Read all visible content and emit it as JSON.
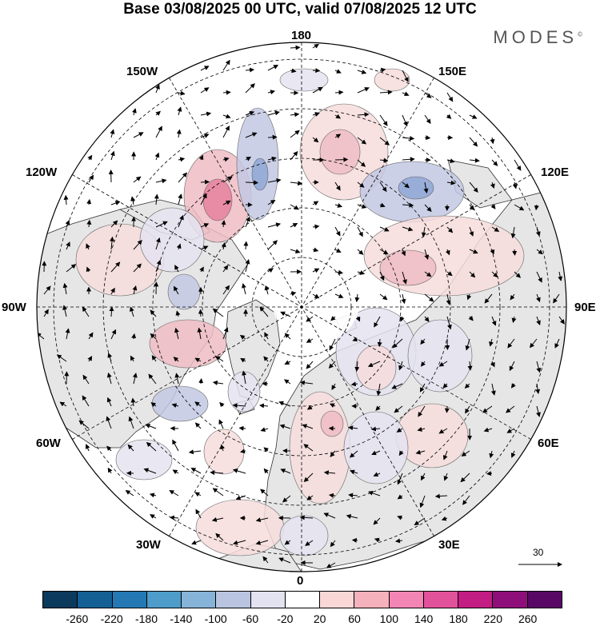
{
  "title": "Base 03/08/2025 00 UTC, valid 07/08/2025 12 UTC",
  "brand": "MODES",
  "brand_mark": "©",
  "longitude_labels": {
    "top": "180",
    "bottom": "0",
    "left": "90W",
    "right": "90E",
    "upper_left_1": "150W",
    "upper_left_2": "120W",
    "upper_right_1": "150E",
    "upper_right_2": "120E",
    "lower_left_1": "60W",
    "lower_left_2": "30W",
    "lower_right_1": "60E",
    "lower_right_2": "30E"
  },
  "vector_scale": {
    "value": "30"
  },
  "colorbar": {
    "colors": [
      "#0b3a5c",
      "#145f93",
      "#2479b5",
      "#4d9cc9",
      "#86b4d8",
      "#b9c5e0",
      "#e2e2f0",
      "#ffffff",
      "#fad7d7",
      "#f6b2bc",
      "#f285b3",
      "#e2529b",
      "#c11d82",
      "#8f0f7a",
      "#5a0866"
    ],
    "tick_labels": [
      "-260",
      "-220",
      "-180",
      "-140",
      "-100",
      "-60",
      "-20",
      "20",
      "60",
      "100",
      "140",
      "180",
      "220",
      "260"
    ]
  },
  "map_colors": {
    "land": "#e6e6e6",
    "ocean": "#ffffff",
    "positive_light": "#f6dcdc",
    "positive_mid": "#efbcc4",
    "positive_strong": "#e6809e",
    "negative_light": "#e4e3f0",
    "negative_mid": "#c3c8e3",
    "negative_strong": "#8ea7d3"
  }
}
